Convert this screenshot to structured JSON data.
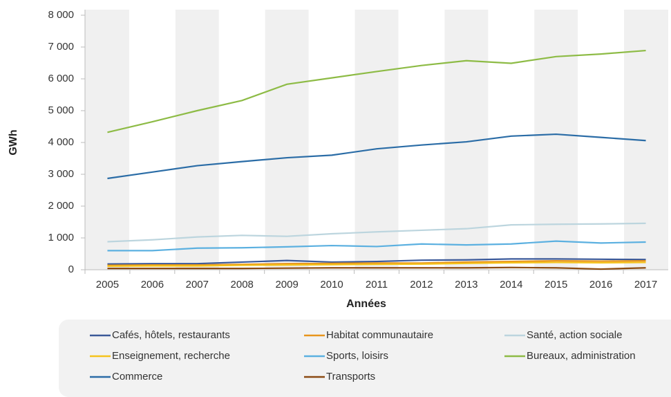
{
  "chart_data": {
    "type": "line",
    "y_label": "GWh",
    "x_label": "Années",
    "categories": [
      "2005",
      "2006",
      "2007",
      "2008",
      "2009",
      "2010",
      "2011",
      "2012",
      "2013",
      "2014",
      "2015",
      "2016",
      "2017"
    ],
    "ylim": [
      0,
      8000
    ],
    "yticks": [
      0,
      {
        "value": 1000,
        "label": "1 000"
      },
      {
        "value": 2000,
        "label": "2 000"
      },
      {
        "value": 3000,
        "label": "3 000"
      },
      {
        "value": 4000,
        "label": "4 000"
      },
      {
        "value": 5000,
        "label": "5 000"
      },
      {
        "value": 6000,
        "label": "6 000"
      },
      {
        "value": 7000,
        "label": "7 000"
      },
      {
        "value": 8000,
        "label": "8 000"
      }
    ],
    "series": [
      {
        "name": "Cafés, hôtels, restaurants",
        "color": "#3b5998",
        "values": [
          180,
          190,
          190,
          240,
          290,
          240,
          260,
          300,
          310,
          340,
          340,
          330,
          320
        ]
      },
      {
        "name": "Habitat communautaire",
        "color": "#e8951c",
        "values": [
          140,
          150,
          150,
          170,
          190,
          200,
          210,
          210,
          240,
          260,
          280,
          270,
          280
        ]
      },
      {
        "name": "Santé, action sociale",
        "color": "#bcd5de",
        "values": [
          880,
          940,
          1030,
          1080,
          1050,
          1130,
          1190,
          1240,
          1290,
          1410,
          1430,
          1440,
          1460
        ]
      },
      {
        "name": "Enseignement, recherche",
        "color": "#f5c31c",
        "values": [
          110,
          120,
          120,
          140,
          150,
          160,
          170,
          180,
          200,
          220,
          230,
          220,
          230
        ]
      },
      {
        "name": "Sports, loisirs",
        "color": "#5bb0e0",
        "values": [
          600,
          600,
          680,
          690,
          720,
          760,
          730,
          810,
          780,
          810,
          900,
          840,
          870
        ]
      },
      {
        "name": "Bureaux, administration",
        "color": "#8dbb45",
        "values": [
          4320,
          4650,
          5000,
          5320,
          5830,
          6030,
          6230,
          6420,
          6570,
          6490,
          6700,
          6780,
          6890
        ]
      },
      {
        "name": "Commerce",
        "color": "#2a6ca6",
        "values": [
          2870,
          3070,
          3270,
          3400,
          3520,
          3600,
          3800,
          3920,
          4020,
          4200,
          4260,
          4160,
          4060
        ]
      },
      {
        "name": "Transports",
        "color": "#8b4a12",
        "values": [
          40,
          40,
          40,
          40,
          50,
          60,
          60,
          60,
          60,
          70,
          60,
          20,
          60
        ]
      }
    ]
  }
}
